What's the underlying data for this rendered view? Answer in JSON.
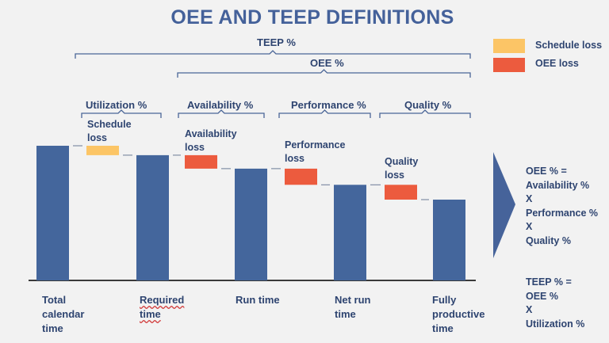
{
  "title": "OEE AND TEEP DEFINITIONS",
  "brackets": {
    "teep": "TEEP %",
    "oee": "OEE %",
    "utilization": "Utilization %",
    "availability": "Availability %",
    "performance": "Performance %",
    "quality": "Quality %"
  },
  "legend": {
    "schedule_loss": "Schedule loss",
    "oee_loss": "OEE loss"
  },
  "loss_labels": {
    "schedule": [
      "Schedule",
      "loss"
    ],
    "availability": [
      "Availability",
      "loss"
    ],
    "performance": [
      "Performance",
      "loss"
    ],
    "quality": [
      "Quality",
      "loss"
    ]
  },
  "x_labels": {
    "total": [
      "Total",
      "calendar",
      "time"
    ],
    "required": [
      "Required",
      "time"
    ],
    "run": [
      "Run time"
    ],
    "net_run": [
      "Net run",
      "time"
    ],
    "fully_productive": [
      "Fully",
      "productive",
      "time"
    ]
  },
  "formulas": {
    "oee": [
      "OEE % =",
      "Availability %",
      "X",
      "Performance %",
      "X",
      "Quality %"
    ],
    "teep": [
      "TEEP % =",
      "OEE %",
      "X",
      "Utilization %"
    ]
  },
  "colors": {
    "bar": "#44669c",
    "schedule_loss": "#fcc566",
    "oee_loss": "#ec5b3e",
    "bracket": "#4a6597",
    "arrow": "#46639a"
  },
  "chart_data": {
    "type": "bar",
    "categories": [
      "Total calendar time",
      "Required time",
      "Run time",
      "Net run time",
      "Fully productive time"
    ],
    "values": [
      100,
      93,
      83,
      71,
      60
    ],
    "losses": [
      {
        "name": "Schedule loss",
        "from": 100,
        "to": 93
      },
      {
        "name": "Availability loss",
        "from": 93,
        "to": 83
      },
      {
        "name": "Performance loss",
        "from": 83,
        "to": 71
      },
      {
        "name": "Quality loss",
        "from": 71,
        "to": 60
      }
    ]
  }
}
